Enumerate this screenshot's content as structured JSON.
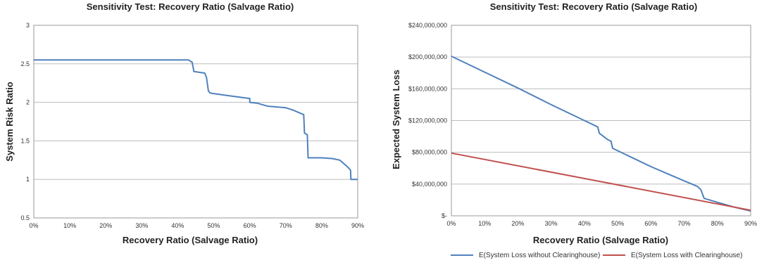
{
  "chart_data": [
    {
      "type": "line",
      "title": "Sensitivity Test: Recovery Ratio (Salvage Ratio)",
      "xlabel": "Recovery Ratio (Salvage Ratio)",
      "ylabel": "System Risk Ratio",
      "xlim": [
        0,
        0.9
      ],
      "ylim": [
        0.5,
        3
      ],
      "x_ticks": [
        "0%",
        "10%",
        "20%",
        "30%",
        "40%",
        "50%",
        "60%",
        "70%",
        "80%",
        "90%"
      ],
      "y_ticks": [
        "0.5",
        "1",
        "1.5",
        "2",
        "2.5",
        "3"
      ],
      "grid": "horizontal",
      "series": [
        {
          "name": "",
          "color": "#4f81bd",
          "x": [
            0,
            0.43,
            0.44,
            0.445,
            0.475,
            0.48,
            0.485,
            0.49,
            0.52,
            0.55,
            0.6,
            0.6,
            0.62,
            0.65,
            0.7,
            0.72,
            0.74,
            0.75,
            0.752,
            0.76,
            0.762,
            0.8,
            0.83,
            0.85,
            0.87,
            0.88,
            0.881,
            0.9
          ],
          "y": [
            2.55,
            2.55,
            2.52,
            2.4,
            2.38,
            2.32,
            2.15,
            2.12,
            2.1,
            2.08,
            2.05,
            2.0,
            1.99,
            1.95,
            1.93,
            1.9,
            1.86,
            1.84,
            1.6,
            1.58,
            1.28,
            1.28,
            1.27,
            1.25,
            1.17,
            1.12,
            1.0,
            1.0
          ]
        }
      ]
    },
    {
      "type": "line",
      "title": "Sensitivity Test: Recovery Ratio (Salvage Ratio)",
      "xlabel": "Recovery Ratio (Salvage Ratio)",
      "ylabel": "Expected System Loss",
      "xlim": [
        0,
        0.9
      ],
      "ylim": [
        0,
        240000000
      ],
      "x_ticks": [
        "0%",
        "10%",
        "20%",
        "30%",
        "40%",
        "50%",
        "60%",
        "70%",
        "80%",
        "90%"
      ],
      "y_ticks": [
        "$-",
        "$40,000,000",
        "$80,000,000",
        "$120,000,000",
        "$160,000,000",
        "$200,000,000",
        "$240,000,000"
      ],
      "grid": "horizontal",
      "legend": "bottom",
      "series": [
        {
          "name": "E(System Loss without Clearinghouse)",
          "color": "#4f81bd",
          "x": [
            0,
            0.1,
            0.2,
            0.3,
            0.4,
            0.43,
            0.44,
            0.445,
            0.47,
            0.48,
            0.485,
            0.5,
            0.55,
            0.6,
            0.65,
            0.7,
            0.74,
            0.75,
            0.76,
            0.8,
            0.85,
            0.9
          ],
          "y": [
            201000000,
            181000000,
            161000000,
            140000000,
            120000000,
            114000000,
            112000000,
            104000000,
            96000000,
            94000000,
            85000000,
            82000000,
            72000000,
            62000000,
            53000000,
            44000000,
            37000000,
            33000000,
            22000000,
            17000000,
            11000000,
            6000000
          ]
        },
        {
          "name": "E(System Loss with Clearinghouse)",
          "color": "#c0504d",
          "x": [
            0,
            0.9
          ],
          "y": [
            79000000,
            7000000
          ]
        }
      ]
    }
  ]
}
